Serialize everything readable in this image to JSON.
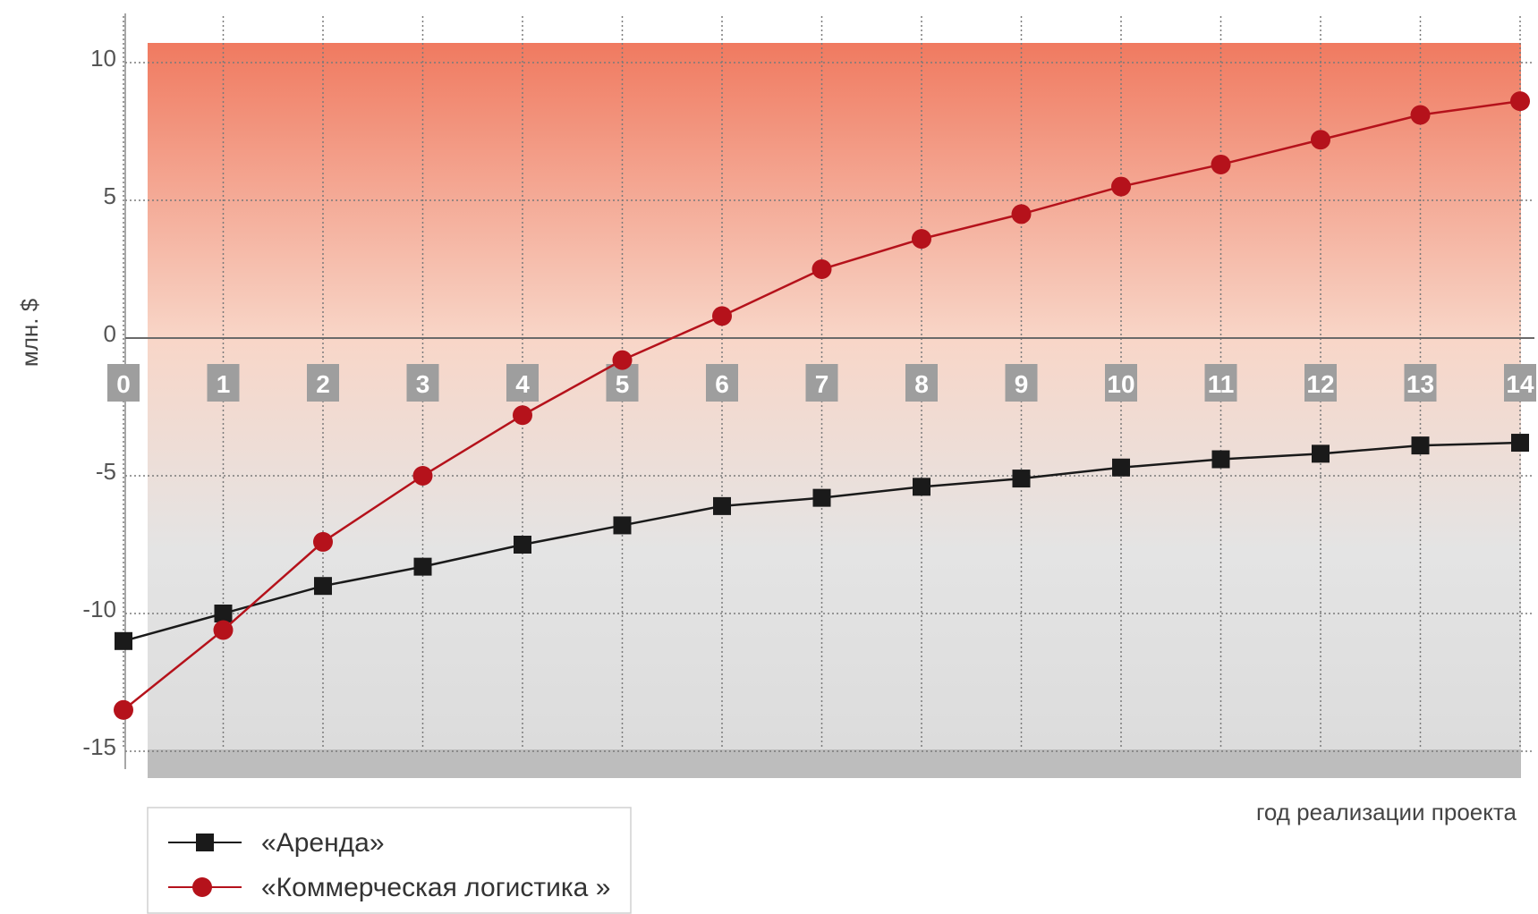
{
  "chart_data": {
    "type": "line",
    "title": "",
    "xlabel": "год реализации проекта",
    "ylabel": "млн. $",
    "x": [
      0,
      1,
      2,
      3,
      4,
      5,
      6,
      7,
      8,
      9,
      10,
      11,
      12,
      13,
      14
    ],
    "x_tick_labels": [
      "0",
      "1",
      "2",
      "3",
      "4",
      "5",
      "6",
      "7",
      "8",
      "9",
      "10",
      "11",
      "12",
      "13",
      "14"
    ],
    "y_ticks": [
      10,
      5,
      0,
      -5,
      -10,
      -15
    ],
    "y_tick_labels": [
      "10",
      "5",
      "0",
      "-5",
      "-10",
      "-15"
    ],
    "ylim": [
      -16.2,
      11
    ],
    "grid": true,
    "legend_position": "bottom-left",
    "series": [
      {
        "name": "«Аренда»",
        "marker": "square",
        "color": "#1a1a1a",
        "values": [
          -11.0,
          -10.0,
          -9.0,
          -8.3,
          -7.5,
          -6.8,
          -6.1,
          -5.8,
          -5.4,
          -5.1,
          -4.7,
          -4.4,
          -4.2,
          -3.9,
          -3.8
        ]
      },
      {
        "name": "«Коммерческая логистика »",
        "marker": "circle",
        "color": "#b5121b",
        "values": [
          -13.5,
          -10.6,
          -7.4,
          -5.0,
          -2.8,
          -0.8,
          0.8,
          2.5,
          3.6,
          4.5,
          5.5,
          6.3,
          7.2,
          8.1,
          8.6
        ]
      }
    ],
    "colors": {
      "gradient_top": "#f07a60",
      "gradient_mid": "#f8d6c8",
      "gradient_bottom": "#e4e4e4",
      "baseline_band": "#bdbdbd",
      "badge": "#9e9e9e",
      "grid": "#7a7a7a"
    }
  }
}
